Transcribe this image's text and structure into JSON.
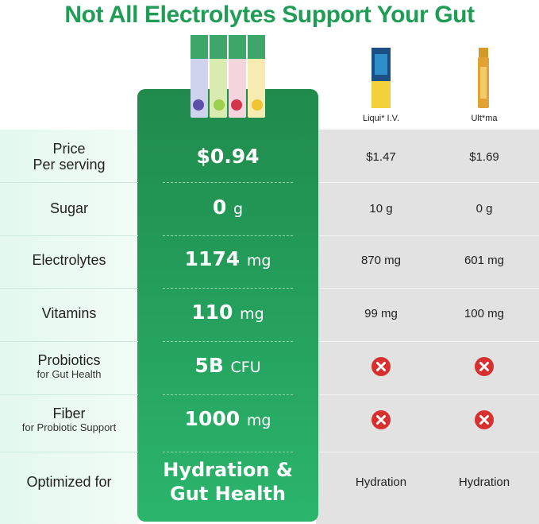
{
  "title": "Not All Electrolytes Support Your Gut",
  "competitors": [
    "Liqui* I.V.",
    "Ult*ma"
  ],
  "rows": [
    {
      "label": [
        "Price",
        "Per serving"
      ],
      "ours": {
        "value": "$0.94"
      },
      "others": [
        "$1.47",
        "$1.69"
      ]
    },
    {
      "label": [
        "Sugar"
      ],
      "ours": {
        "value": "0",
        "unit": "g"
      },
      "others": [
        "10 g",
        "0 g"
      ]
    },
    {
      "label": [
        "Electrolytes"
      ],
      "ours": {
        "value": "1174",
        "unit": "mg"
      },
      "others": [
        "870 mg",
        "601 mg"
      ]
    },
    {
      "label": [
        "Vitamins"
      ],
      "ours": {
        "value": "110",
        "unit": "mg"
      },
      "others": [
        "99 mg",
        "100 mg"
      ]
    },
    {
      "label": [
        "Probiotics"
      ],
      "note": "for Gut Health",
      "ours": {
        "value": "5B",
        "unit": "CFU"
      },
      "others": [
        null,
        null
      ]
    },
    {
      "label": [
        "Fiber"
      ],
      "note": "for Probiotic Support",
      "ours": {
        "value": "1000",
        "unit": "mg"
      },
      "others": [
        null,
        null
      ]
    },
    {
      "label": [
        "Optimized for"
      ],
      "ours": {
        "lines": [
          "Hydration &",
          "Gut Health"
        ]
      },
      "others": [
        "Hydration",
        "Hydration"
      ]
    }
  ]
}
